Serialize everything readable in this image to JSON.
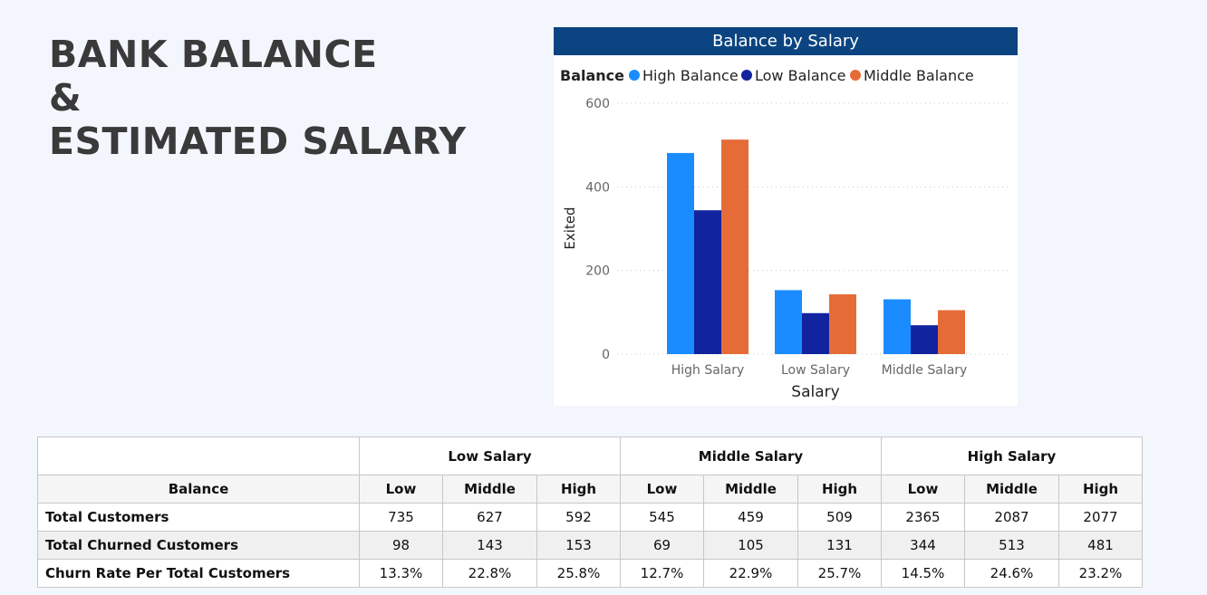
{
  "title": {
    "line1": "BANK BALANCE",
    "line2": "&",
    "line3": "ESTIMATED SALARY"
  },
  "colors": {
    "high_balance": "#1a8cff",
    "low_balance": "#12239e",
    "middle_balance": "#e66c37",
    "header_bg": "#0c4481"
  },
  "chart_data": {
    "type": "bar",
    "title": "Balance by Salary",
    "legend_title": "Balance",
    "legend_position": "top-left",
    "categories": [
      "High Salary",
      "Low Salary",
      "Middle Salary"
    ],
    "series": [
      {
        "name": "High Balance",
        "values": [
          481,
          153,
          131
        ]
      },
      {
        "name": "Low Balance",
        "values": [
          344,
          98,
          69
        ]
      },
      {
        "name": "Middle Balance",
        "values": [
          513,
          143,
          105
        ]
      }
    ],
    "xlabel": "Salary",
    "ylabel": "Exited",
    "ylim": [
      0,
      600
    ],
    "yticks": [
      0,
      200,
      400,
      600
    ],
    "grid": true
  },
  "table": {
    "group_headers": [
      "Low Salary",
      "Middle Salary",
      "High Salary"
    ],
    "row_header": "Balance",
    "sub_headers": [
      "Low",
      "Middle",
      "High",
      "Low",
      "Middle",
      "High",
      "Low",
      "Middle",
      "High"
    ],
    "rows": [
      {
        "label": "Total Customers",
        "values": [
          "735",
          "627",
          "592",
          "545",
          "459",
          "509",
          "2365",
          "2087",
          "2077"
        ]
      },
      {
        "label": "Total Churned Customers",
        "values": [
          "98",
          "143",
          "153",
          "69",
          "105",
          "131",
          "344",
          "513",
          "481"
        ]
      },
      {
        "label": "Churn Rate Per Total Customers",
        "values": [
          "13.3%",
          "22.8%",
          "25.8%",
          "12.7%",
          "22.9%",
          "25.7%",
          "14.5%",
          "24.6%",
          "23.2%"
        ]
      }
    ]
  }
}
